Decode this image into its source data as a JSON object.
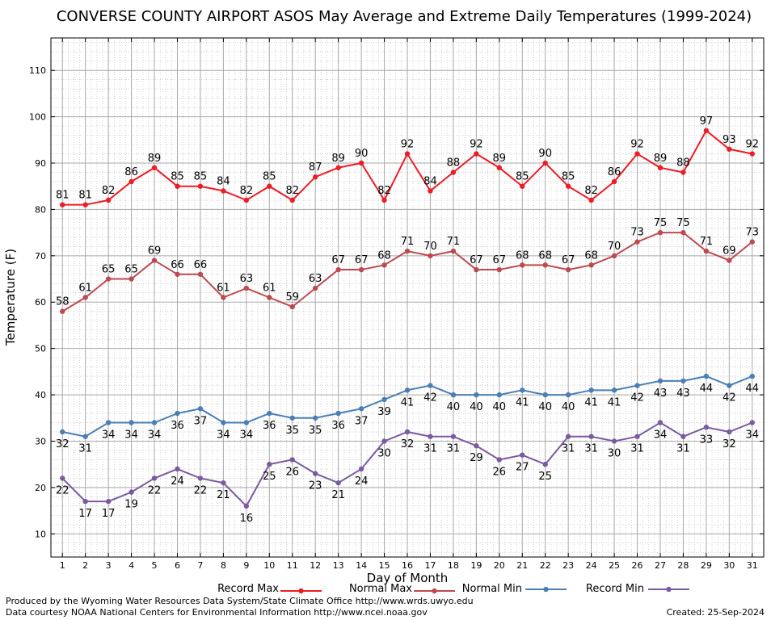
{
  "chart_data": {
    "type": "line",
    "title": "CONVERSE COUNTY AIRPORT ASOS May Average and Extreme Daily Temperatures (1999-2024)",
    "xlabel": "Day of Month",
    "ylabel": "Temperature (F)",
    "x": [
      1,
      2,
      3,
      4,
      5,
      6,
      7,
      8,
      9,
      10,
      11,
      12,
      13,
      14,
      15,
      16,
      17,
      18,
      19,
      20,
      21,
      22,
      23,
      24,
      25,
      26,
      27,
      28,
      29,
      30,
      31
    ],
    "xlim": [
      0.5,
      31.5
    ],
    "ylim": [
      5,
      117
    ],
    "yticks": [
      10,
      20,
      30,
      40,
      50,
      60,
      70,
      80,
      90,
      100,
      110
    ],
    "grid": true,
    "legend_position": "bottom",
    "series": [
      {
        "name": "Record Max",
        "color": "#ee1c25",
        "label_position": "above",
        "values": [
          81,
          81,
          82,
          86,
          89,
          85,
          85,
          84,
          82,
          85,
          82,
          87,
          89,
          90,
          82,
          92,
          84,
          88,
          92,
          89,
          85,
          90,
          85,
          82,
          86,
          92,
          89,
          88,
          97,
          93,
          92
        ]
      },
      {
        "name": "Normal Max",
        "color": "#bd4a4f",
        "label_position": "above",
        "values": [
          58,
          61,
          65,
          65,
          69,
          66,
          66,
          61,
          63,
          61,
          59,
          63,
          67,
          67,
          68,
          71,
          70,
          71,
          67,
          67,
          68,
          68,
          67,
          68,
          70,
          73,
          75,
          75,
          71,
          69,
          73
        ]
      },
      {
        "name": "Normal Min",
        "color": "#4a7fb5",
        "label_position": "below",
        "values": [
          32,
          31,
          34,
          34,
          34,
          36,
          37,
          34,
          34,
          36,
          35,
          35,
          36,
          37,
          39,
          41,
          42,
          40,
          40,
          40,
          41,
          40,
          40,
          41,
          41,
          42,
          43,
          43,
          44,
          42,
          44
        ]
      },
      {
        "name": "Record Min",
        "color": "#7a5aa0",
        "label_position": "below",
        "values": [
          22,
          17,
          17,
          19,
          22,
          24,
          22,
          21,
          16,
          25,
          26,
          23,
          21,
          24,
          30,
          32,
          31,
          31,
          29,
          26,
          27,
          25,
          31,
          31,
          30,
          31,
          34,
          31,
          33,
          32,
          34
        ]
      }
    ]
  },
  "footer": {
    "credit_line1": "Produced by the Wyoming Water Resources Data System/State Climate Office http://www.wrds.uwyo.edu",
    "credit_line2": "Data courtesy NOAA National Centers for Environmental Information http://www.ncei.noaa.gov",
    "created": "Created:  25-Sep-2024"
  }
}
